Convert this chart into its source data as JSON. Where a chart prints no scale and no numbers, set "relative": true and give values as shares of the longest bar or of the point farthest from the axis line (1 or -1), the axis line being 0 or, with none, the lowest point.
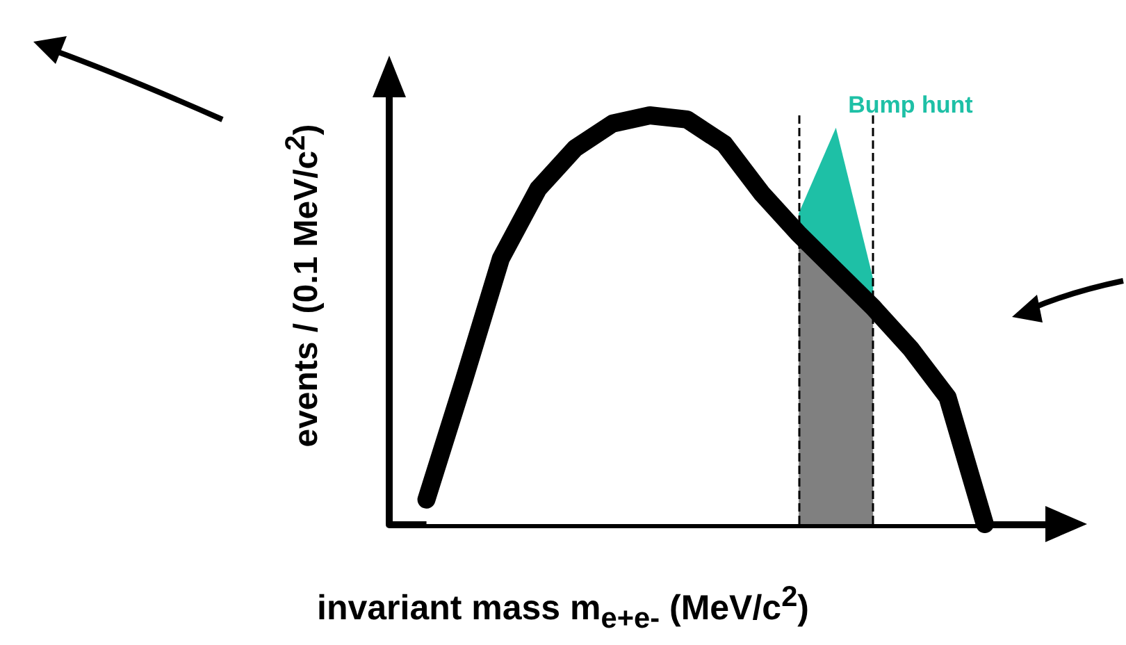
{
  "chart_data": {
    "type": "line",
    "relative": true,
    "xlabel": "invariant mass m$_{e+e-}$ (MeV/c$^{2}$)",
    "ylabel": "events / (0.1 MeV/c$^{2}$)",
    "categories": [
      null,
      null,
      null,
      null,
      null,
      null,
      null,
      null,
      null,
      null,
      null,
      null,
      null,
      null,
      null,
      null,
      null,
      null,
      null
    ],
    "series": [
      {
        "name": "Bump hunt",
        "type": "area",
        "color": "#1ec0a6",
        "values": [
          null,
          null,
          null,
          null,
          null,
          null,
          null,
          null,
          null,
          null,
          null,
          0.76,
          0.97,
          0.6,
          null,
          null,
          null,
          null,
          null
        ]
      },
      {
        "color": "#000000",
        "values": [
          null,
          0.06,
          0.35,
          0.65,
          0.82,
          0.92,
          0.98,
          1.0,
          0.99,
          0.93,
          0.81,
          0.71,
          0.62,
          0.53,
          0.43,
          0.31,
          0,
          null,
          null
        ]
      },
      {
        "type": "area",
        "color": "#808080",
        "values": [
          null,
          null,
          null,
          null,
          null,
          null,
          null,
          null,
          null,
          null,
          null,
          0.71,
          0.62,
          0.53,
          null,
          null,
          null,
          null,
          null
        ]
      }
    ],
    "grid": false,
    "marker": "none"
  }
}
